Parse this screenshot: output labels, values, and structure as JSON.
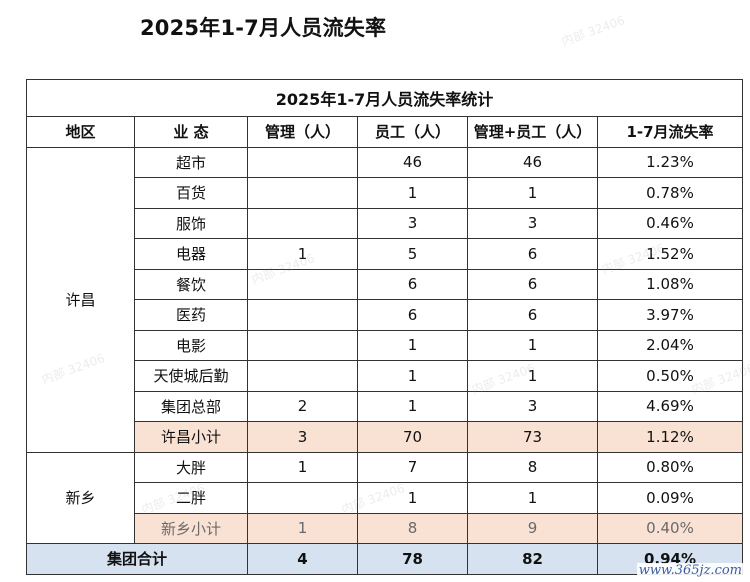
{
  "page_title": "2025年1-7月人员流失率",
  "table": {
    "caption": "2025年1-7月人员流失率统计",
    "headers": {
      "region": "地区",
      "business": "业 态",
      "management": "管理（人）",
      "staff": "员工（人）",
      "total": "管理+员工（人）",
      "turnover": "1-7月流失率"
    },
    "groups": [
      {
        "region": "许昌",
        "rows": [
          {
            "business": "超市",
            "management": "",
            "staff": "46",
            "total": "46",
            "turnover": "1.23%"
          },
          {
            "business": "百货",
            "management": "",
            "staff": "1",
            "total": "1",
            "turnover": "0.78%"
          },
          {
            "business": "服饰",
            "management": "",
            "staff": "3",
            "total": "3",
            "turnover": "0.46%"
          },
          {
            "business": "电器",
            "management": "1",
            "staff": "5",
            "total": "6",
            "turnover": "1.52%"
          },
          {
            "business": "餐饮",
            "management": "",
            "staff": "6",
            "total": "6",
            "turnover": "1.08%"
          },
          {
            "business": "医药",
            "management": "",
            "staff": "6",
            "total": "6",
            "turnover": "3.97%"
          },
          {
            "business": "电影",
            "management": "",
            "staff": "1",
            "total": "1",
            "turnover": "2.04%"
          },
          {
            "business": "天使城后勤",
            "management": "",
            "staff": "1",
            "total": "1",
            "turnover": "0.50%"
          },
          {
            "business": "集团总部",
            "management": "2",
            "staff": "1",
            "total": "3",
            "turnover": "4.69%"
          }
        ],
        "subtotal": {
          "business": "许昌小计",
          "management": "3",
          "staff": "70",
          "total": "73",
          "turnover": "1.12%"
        }
      },
      {
        "region": "新乡",
        "rows": [
          {
            "business": "大胖",
            "management": "1",
            "staff": "7",
            "total": "8",
            "turnover": "0.80%"
          },
          {
            "business": "二胖",
            "management": "",
            "staff": "1",
            "total": "1",
            "turnover": "0.09%"
          }
        ],
        "subtotal": {
          "business": "新乡小计",
          "management": "1",
          "staff": "8",
          "total": "9",
          "turnover": "0.40%"
        }
      }
    ],
    "grand_total": {
      "label": "集团合计",
      "management": "4",
      "staff": "78",
      "total": "82",
      "turnover": "0.94%"
    }
  },
  "watermark_text": "内部 32406",
  "site_mark": "www.365jz.com",
  "colors": {
    "subtotal_bg": "#f9e2d4",
    "grand_total_bg": "#d7e2f1",
    "border": "#333333"
  }
}
